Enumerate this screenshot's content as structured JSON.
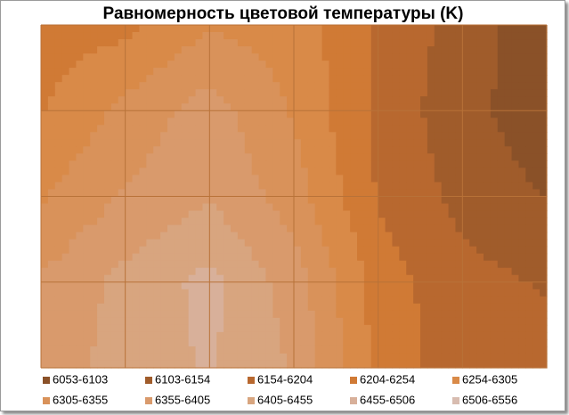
{
  "chart_data": {
    "type": "contour",
    "title": "Равномерность цветовой температуры (K)",
    "levels": [
      6053,
      6103,
      6154,
      6204,
      6254,
      6305,
      6355,
      6405,
      6455,
      6506,
      6556
    ],
    "z": [
      [
        6230,
        6240,
        6300,
        6280,
        6200,
        6130,
        6070
      ],
      [
        6250,
        6320,
        6380,
        6300,
        6190,
        6120,
        6070
      ],
      [
        6300,
        6360,
        6400,
        6330,
        6200,
        6140,
        6100
      ],
      [
        6360,
        6420,
        6470,
        6380,
        6230,
        6170,
        6150
      ],
      [
        6370,
        6430,
        6460,
        6400,
        6240,
        6170,
        6170
      ]
    ],
    "series": [
      {
        "name": "6053-6103",
        "color": "#8a5128"
      },
      {
        "name": "6103-6154",
        "color": "#a05c2b"
      },
      {
        "name": "6154-6204",
        "color": "#b8682f"
      },
      {
        "name": "6204-6254",
        "color": "#d07a35"
      },
      {
        "name": "6254-6305",
        "color": "#d98a48"
      },
      {
        "name": "6305-6355",
        "color": "#d9925a"
      },
      {
        "name": "6355-6405",
        "color": "#d99a6c"
      },
      {
        "name": "6405-6455",
        "color": "#d8a57f"
      },
      {
        "name": "6455-6506",
        "color": "#d8b09a"
      },
      {
        "name": "6506-6556",
        "color": "#d8bcb0"
      }
    ],
    "grid": true
  }
}
